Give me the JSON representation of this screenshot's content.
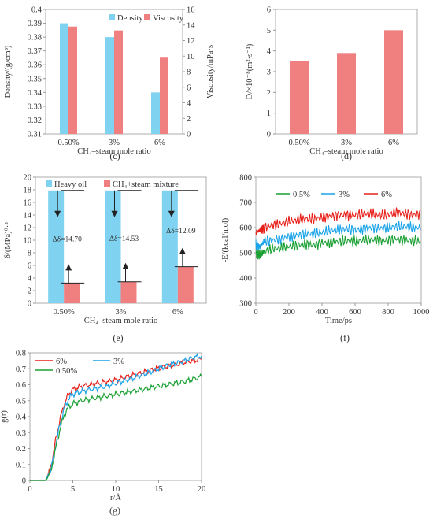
{
  "chart_data": [
    {
      "panel": "(c)",
      "type": "bar",
      "categories": [
        "0.50%",
        "3%",
        "6%"
      ],
      "series": [
        {
          "name": "Density",
          "values": [
            0.39,
            0.38,
            0.34
          ],
          "axis": "left",
          "color": "#7fd3f0"
        },
        {
          "name": "Viscosity",
          "values": [
            13.8,
            13.3,
            9.8
          ],
          "axis": "right",
          "color": "#f08080"
        }
      ],
      "xlabel": "CH₄–steam mole ratio",
      "ylabel": "Density/(g/cm³)",
      "y2label": "Viscosity/mPa·s",
      "ylim": [
        0.31,
        0.4
      ],
      "yticks": [
        "0.31",
        "0.32",
        "0.33",
        "0.34",
        "0.35",
        "0.36",
        "0.37",
        "0.38",
        "0.39",
        "0.4"
      ],
      "y2lim": [
        0,
        16
      ],
      "y2ticks": [
        "0",
        "2",
        "4",
        "6",
        "8",
        "10",
        "12",
        "14",
        "16"
      ],
      "legend": "top-right",
      "grid": false
    },
    {
      "panel": "(d)",
      "type": "bar",
      "categories": [
        "0.50%",
        "3%",
        "6%"
      ],
      "series": [
        {
          "values": [
            3.5,
            3.9,
            5.0
          ],
          "color": "#f08080"
        }
      ],
      "xlabel": "CH₄–steam mole ratio",
      "ylabel": "D/×10⁻⁸(m²·s⁻¹)",
      "ylim": [
        0,
        6
      ],
      "yticks": [
        "0",
        "1",
        "2",
        "3",
        "4",
        "5",
        "6"
      ],
      "grid": false
    },
    {
      "panel": "(e)",
      "type": "bar",
      "categories": [
        "0.50%",
        "3%",
        "6%"
      ],
      "series": [
        {
          "name": "Heavy oil",
          "values": [
            17.9,
            17.9,
            17.9
          ],
          "color": "#7fd3f0"
        },
        {
          "name": "CH₄+steam mixture",
          "values": [
            3.2,
            3.4,
            5.8
          ],
          "color": "#f08080"
        }
      ],
      "annotations": [
        "Δδ=14.70",
        "Δδ=14.53",
        "Δδ=12.09"
      ],
      "xlabel": "CH₄–steam mole ratio",
      "ylabel": "δ/(MPa)⁰·⁵",
      "ylim": [
        0,
        20
      ],
      "yticks": [
        "0",
        "2",
        "4",
        "6",
        "8",
        "10",
        "12",
        "14",
        "16",
        "18",
        "20"
      ],
      "legend": "top",
      "grid": false
    },
    {
      "panel": "(f)",
      "type": "line",
      "series": [
        {
          "name": "0.5%",
          "color": "#1aa033",
          "x": [
            0,
            25,
            50,
            100,
            150,
            200,
            250,
            300,
            350,
            400,
            450,
            500,
            550,
            600,
            650,
            700,
            750,
            800,
            850,
            900,
            950,
            1000
          ],
          "y": [
            500,
            490,
            505,
            515,
            520,
            525,
            530,
            535,
            530,
            540,
            540,
            545,
            548,
            545,
            550,
            552,
            548,
            550,
            555,
            550,
            548,
            545
          ]
        },
        {
          "name": "3%",
          "color": "#1aa3e8",
          "x": [
            0,
            25,
            50,
            100,
            150,
            200,
            250,
            300,
            350,
            400,
            450,
            500,
            550,
            600,
            650,
            700,
            750,
            800,
            850,
            900,
            950,
            1000
          ],
          "y": [
            530,
            525,
            545,
            550,
            555,
            565,
            570,
            575,
            575,
            580,
            590,
            590,
            595,
            590,
            595,
            600,
            598,
            600,
            605,
            605,
            600,
            600
          ]
        },
        {
          "name": "6%",
          "color": "#e8201a",
          "x": [
            0,
            25,
            50,
            100,
            150,
            200,
            250,
            300,
            350,
            400,
            450,
            500,
            550,
            600,
            650,
            700,
            750,
            800,
            850,
            900,
            950,
            1000
          ],
          "y": [
            580,
            590,
            600,
            610,
            615,
            625,
            630,
            635,
            635,
            640,
            645,
            650,
            650,
            650,
            655,
            655,
            650,
            650,
            660,
            655,
            650,
            655
          ]
        }
      ],
      "xlabel": "Time/ps",
      "ylabel": "-E/(kcal/mol)",
      "xlim": [
        0,
        1000
      ],
      "xticks": [
        "0",
        "200",
        "400",
        "600",
        "800",
        "1000"
      ],
      "ylim": [
        300,
        800
      ],
      "yticks": [
        "300",
        "400",
        "500",
        "600",
        "700",
        "800"
      ],
      "legend": "top",
      "grid": false
    },
    {
      "panel": "(g)",
      "type": "line",
      "series": [
        {
          "name": "6%",
          "color": "#e8201a",
          "x": [
            0,
            1.8,
            2.0,
            2.5,
            3.0,
            3.5,
            4.0,
            4.5,
            5.0,
            5.5,
            6,
            7,
            8,
            9,
            10,
            11,
            12,
            13,
            14,
            15,
            16,
            17,
            18,
            19,
            20
          ],
          "y": [
            0,
            0,
            0.02,
            0.1,
            0.25,
            0.38,
            0.48,
            0.54,
            0.57,
            0.58,
            0.59,
            0.6,
            0.61,
            0.62,
            0.63,
            0.645,
            0.66,
            0.675,
            0.69,
            0.705,
            0.715,
            0.725,
            0.74,
            0.75,
            0.76
          ]
        },
        {
          "name": "3%",
          "color": "#1aa3e8",
          "x": [
            0,
            1.8,
            2.0,
            2.5,
            3.0,
            3.5,
            4.0,
            4.5,
            5.0,
            5.5,
            6,
            7,
            8,
            9,
            10,
            11,
            12,
            13,
            14,
            15,
            16,
            17,
            18,
            19,
            20
          ],
          "y": [
            0,
            0,
            0.02,
            0.08,
            0.22,
            0.35,
            0.45,
            0.51,
            0.54,
            0.55,
            0.56,
            0.57,
            0.58,
            0.59,
            0.61,
            0.625,
            0.64,
            0.66,
            0.68,
            0.7,
            0.72,
            0.735,
            0.75,
            0.77,
            0.78
          ]
        },
        {
          "name": "0.50%",
          "color": "#1aa033",
          "x": [
            0,
            1.8,
            2.0,
            2.5,
            3.0,
            3.5,
            4.0,
            4.5,
            5.0,
            5.5,
            6,
            7,
            8,
            9,
            10,
            11,
            12,
            13,
            14,
            15,
            16,
            17,
            18,
            19,
            20
          ],
          "y": [
            0,
            0,
            0.01,
            0.07,
            0.2,
            0.32,
            0.41,
            0.46,
            0.48,
            0.49,
            0.5,
            0.51,
            0.52,
            0.53,
            0.54,
            0.55,
            0.56,
            0.57,
            0.58,
            0.59,
            0.6,
            0.61,
            0.62,
            0.635,
            0.65
          ]
        }
      ],
      "xlabel": "r/Å",
      "ylabel": "g(r)",
      "xlim": [
        0,
        20
      ],
      "xticks": [
        "0",
        "5",
        "10",
        "15",
        "20"
      ],
      "ylim": [
        0,
        0.8
      ],
      "yticks": [
        "0",
        "0.1",
        "0.2",
        "0.3",
        "0.4",
        "0.5",
        "0.6",
        "0.7",
        "0.8"
      ],
      "legend": "top",
      "grid": false
    }
  ]
}
